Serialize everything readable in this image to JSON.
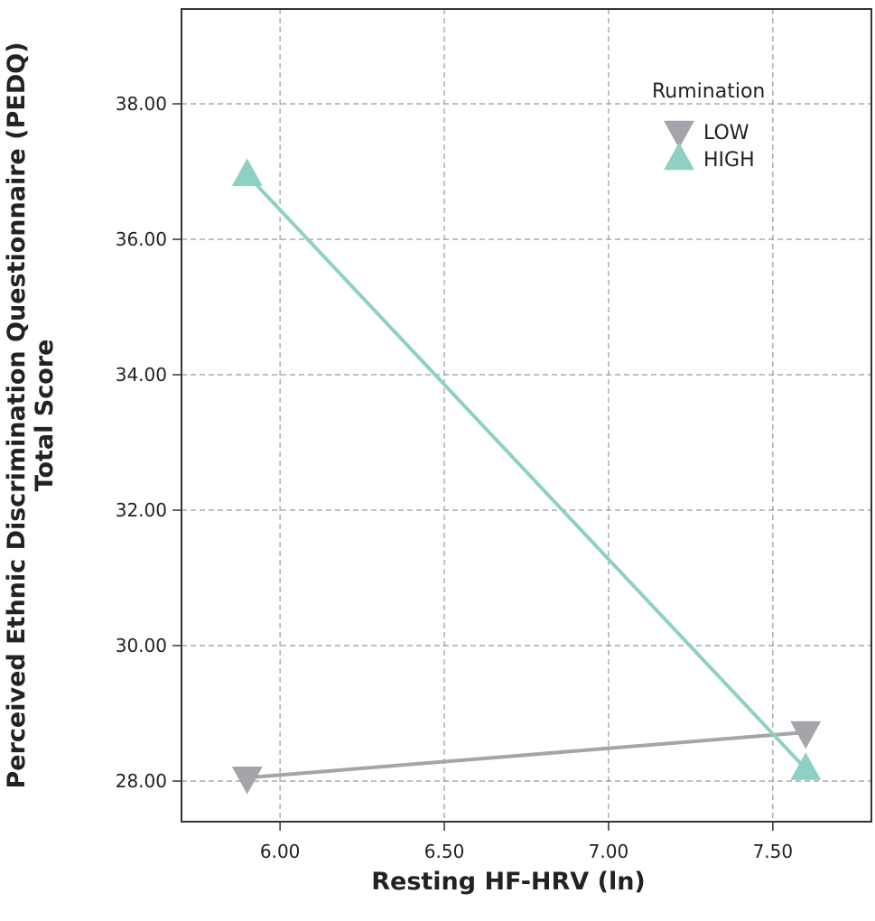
{
  "chart_data": {
    "type": "line",
    "xlabel": "Resting HF-HRV (ln)",
    "ylabel_line1": "Perceived Ethnic Discrimination Questionnaire (PEDQ)",
    "ylabel_line2": "Total Score",
    "xlim": [
      5.7,
      7.8
    ],
    "ylim": [
      27.4,
      39.4
    ],
    "xticks": [
      6.0,
      6.5,
      7.0,
      7.5
    ],
    "xtick_labels": [
      "6.00",
      "6.50",
      "7.00",
      "7.50"
    ],
    "yticks": [
      28,
      30,
      32,
      34,
      36,
      38
    ],
    "ytick_labels": [
      "28.00",
      "30.00",
      "32.00",
      "34.00",
      "36.00",
      "38.00"
    ],
    "grid": true,
    "legend": {
      "title": "Rumination",
      "position": "top-right"
    },
    "series": [
      {
        "name": "LOW",
        "marker": "triangle-down",
        "color": "#a4a4aa",
        "x": [
          5.9,
          7.6
        ],
        "y": [
          28.05,
          28.72
        ]
      },
      {
        "name": "HIGH",
        "marker": "triangle-up",
        "color": "#8fd0c4",
        "x": [
          5.9,
          7.6
        ],
        "y": [
          36.95,
          28.18
        ]
      }
    ]
  }
}
